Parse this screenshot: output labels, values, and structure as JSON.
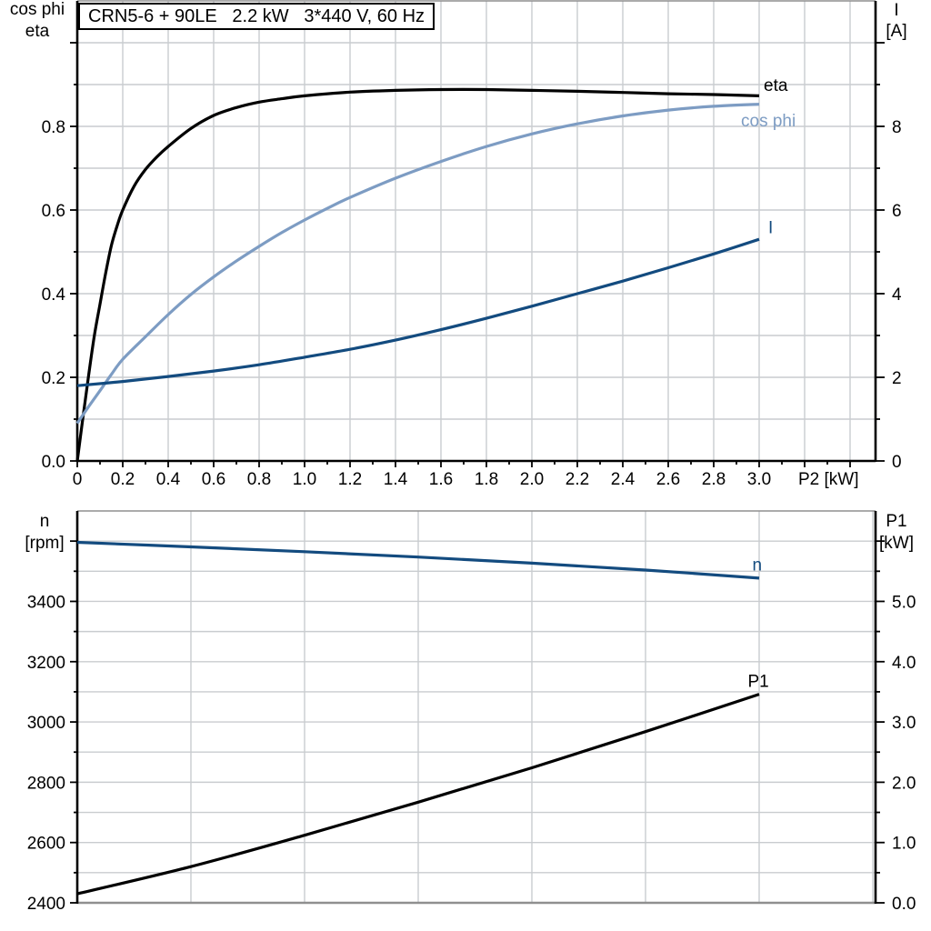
{
  "colors": {
    "black": "#000000",
    "light_blue": "#7d9cc3",
    "dark_blue": "#134b7f",
    "grid": "#c9cccf",
    "frame_gray": "#8f8f8f",
    "background": "#ffffff"
  },
  "chart_data": [
    {
      "id": "top",
      "type": "line",
      "title": "CRN5-6 + 90LE   2.2 kW   3*440 V, 60 Hz",
      "x_axis": {
        "label": "P2 [kW]",
        "min": 0,
        "max": 3.512,
        "grid_step": 0.2,
        "major_tick": 0.2,
        "minor_tick": 0.1,
        "tick_labels": [
          "0",
          "0.2",
          "0.4",
          "0.6",
          "0.8",
          "1.0",
          "1.2",
          "1.4",
          "1.6",
          "1.8",
          "2.0",
          "2.2",
          "2.4",
          "2.6",
          "2.8",
          "3.0"
        ],
        "grid": true
      },
      "left_axis": {
        "label_line1": "cos phi",
        "label_line2": "eta",
        "min": 0,
        "max": 1.1,
        "grid_step": 0.1,
        "major_tick": 0.2,
        "minor_tick": 0.1,
        "tick_labels": [
          "0.0",
          "0.2",
          "0.4",
          "0.6",
          "0.8"
        ]
      },
      "right_axis": {
        "label_line1": "I",
        "label_line2": "[A]",
        "min": 0,
        "max": 11,
        "major_tick": 2,
        "minor_tick": 1,
        "tick_labels": [
          "0",
          "2",
          "4",
          "6",
          "8"
        ]
      },
      "series": [
        {
          "name": "eta",
          "axis": "left",
          "color": "#000000",
          "label": {
            "x": 3.02,
            "y": 0.885
          },
          "points": [
            [
              0,
              0
            ],
            [
              0.025,
              0.105
            ],
            [
              0.05,
              0.205
            ],
            [
              0.075,
              0.3
            ],
            [
              0.1,
              0.375
            ],
            [
              0.125,
              0.45
            ],
            [
              0.15,
              0.515
            ],
            [
              0.175,
              0.562
            ],
            [
              0.2,
              0.6
            ],
            [
              0.25,
              0.657
            ],
            [
              0.3,
              0.697
            ],
            [
              0.35,
              0.727
            ],
            [
              0.4,
              0.752
            ],
            [
              0.5,
              0.795
            ],
            [
              0.6,
              0.826
            ],
            [
              0.7,
              0.845
            ],
            [
              0.8,
              0.858
            ],
            [
              0.9,
              0.866
            ],
            [
              1,
              0.873
            ],
            [
              1.2,
              0.882
            ],
            [
              1.4,
              0.886
            ],
            [
              1.6,
              0.888
            ],
            [
              1.8,
              0.888
            ],
            [
              2,
              0.886
            ],
            [
              2.2,
              0.884
            ],
            [
              2.4,
              0.881
            ],
            [
              2.6,
              0.878
            ],
            [
              2.8,
              0.876
            ],
            [
              3,
              0.873
            ]
          ]
        },
        {
          "name": "cos phi",
          "axis": "left",
          "color": "#7d9cc3",
          "label": {
            "x": 2.92,
            "y": 0.8
          },
          "points": [
            [
              0,
              0.09
            ],
            [
              0.05,
              0.13
            ],
            [
              0.1,
              0.168
            ],
            [
              0.15,
              0.207
            ],
            [
              0.2,
              0.243
            ],
            [
              0.3,
              0.297
            ],
            [
              0.4,
              0.35
            ],
            [
              0.5,
              0.398
            ],
            [
              0.6,
              0.44
            ],
            [
              0.7,
              0.478
            ],
            [
              0.8,
              0.513
            ],
            [
              0.9,
              0.546
            ],
            [
              1,
              0.576
            ],
            [
              1.1,
              0.604
            ],
            [
              1.2,
              0.63
            ],
            [
              1.4,
              0.676
            ],
            [
              1.6,
              0.716
            ],
            [
              1.8,
              0.752
            ],
            [
              2,
              0.782
            ],
            [
              2.2,
              0.806
            ],
            [
              2.4,
              0.825
            ],
            [
              2.6,
              0.839
            ],
            [
              2.8,
              0.848
            ],
            [
              3,
              0.853
            ]
          ]
        },
        {
          "name": "I",
          "axis": "right",
          "color": "#134b7f",
          "label": {
            "x": 3.04,
            "y": 5.45
          },
          "points": [
            [
              0,
              1.8
            ],
            [
              0.2,
              1.9
            ],
            [
              0.4,
              2.02
            ],
            [
              0.6,
              2.15
            ],
            [
              0.8,
              2.3
            ],
            [
              1,
              2.48
            ],
            [
              1.2,
              2.67
            ],
            [
              1.4,
              2.89
            ],
            [
              1.6,
              3.14
            ],
            [
              1.8,
              3.41
            ],
            [
              2,
              3.7
            ],
            [
              2.2,
              4.0
            ],
            [
              2.4,
              4.3
            ],
            [
              2.6,
              4.62
            ],
            [
              2.8,
              4.95
            ],
            [
              3,
              5.3
            ]
          ]
        }
      ]
    },
    {
      "id": "bottom",
      "type": "line",
      "title": "",
      "x_axis": {
        "label": "",
        "min": 0,
        "max": 3.512,
        "grid_step": 0.5,
        "major_tick": null,
        "minor_tick": null,
        "tick_labels": [],
        "grid": true
      },
      "left_axis": {
        "label_line1": "n",
        "label_line2": "[rpm]",
        "min": 2400,
        "max": 3700,
        "grid_step": 100,
        "major_tick": 200,
        "minor_tick": 100,
        "tick_labels": [
          "2400",
          "2600",
          "2800",
          "3000",
          "3200",
          "3400"
        ]
      },
      "right_axis": {
        "label_line1": "P1",
        "label_line2": "[kW]",
        "min": 0,
        "max": 6.5,
        "major_tick": 1,
        "minor_tick": 0.5,
        "tick_labels": [
          "0.0",
          "1.0",
          "2.0",
          "3.0",
          "4.0",
          "5.0"
        ]
      },
      "series": [
        {
          "name": "n",
          "axis": "left",
          "color": "#134b7f",
          "label": {
            "x": 2.97,
            "y": 3503
          },
          "points": [
            [
              0,
              3596
            ],
            [
              0.5,
              3581
            ],
            [
              1,
              3565
            ],
            [
              1.5,
              3547
            ],
            [
              2,
              3527
            ],
            [
              2.5,
              3504
            ],
            [
              3,
              3477
            ]
          ]
        },
        {
          "name": "P1",
          "axis": "right",
          "color": "#000000",
          "label": {
            "x": 2.95,
            "y": 3.58
          },
          "points": [
            [
              0,
              0.15
            ],
            [
              0.5,
              0.6
            ],
            [
              1,
              1.12
            ],
            [
              1.5,
              1.67
            ],
            [
              2,
              2.24
            ],
            [
              2.5,
              2.84
            ],
            [
              3,
              3.46
            ]
          ]
        }
      ]
    }
  ]
}
